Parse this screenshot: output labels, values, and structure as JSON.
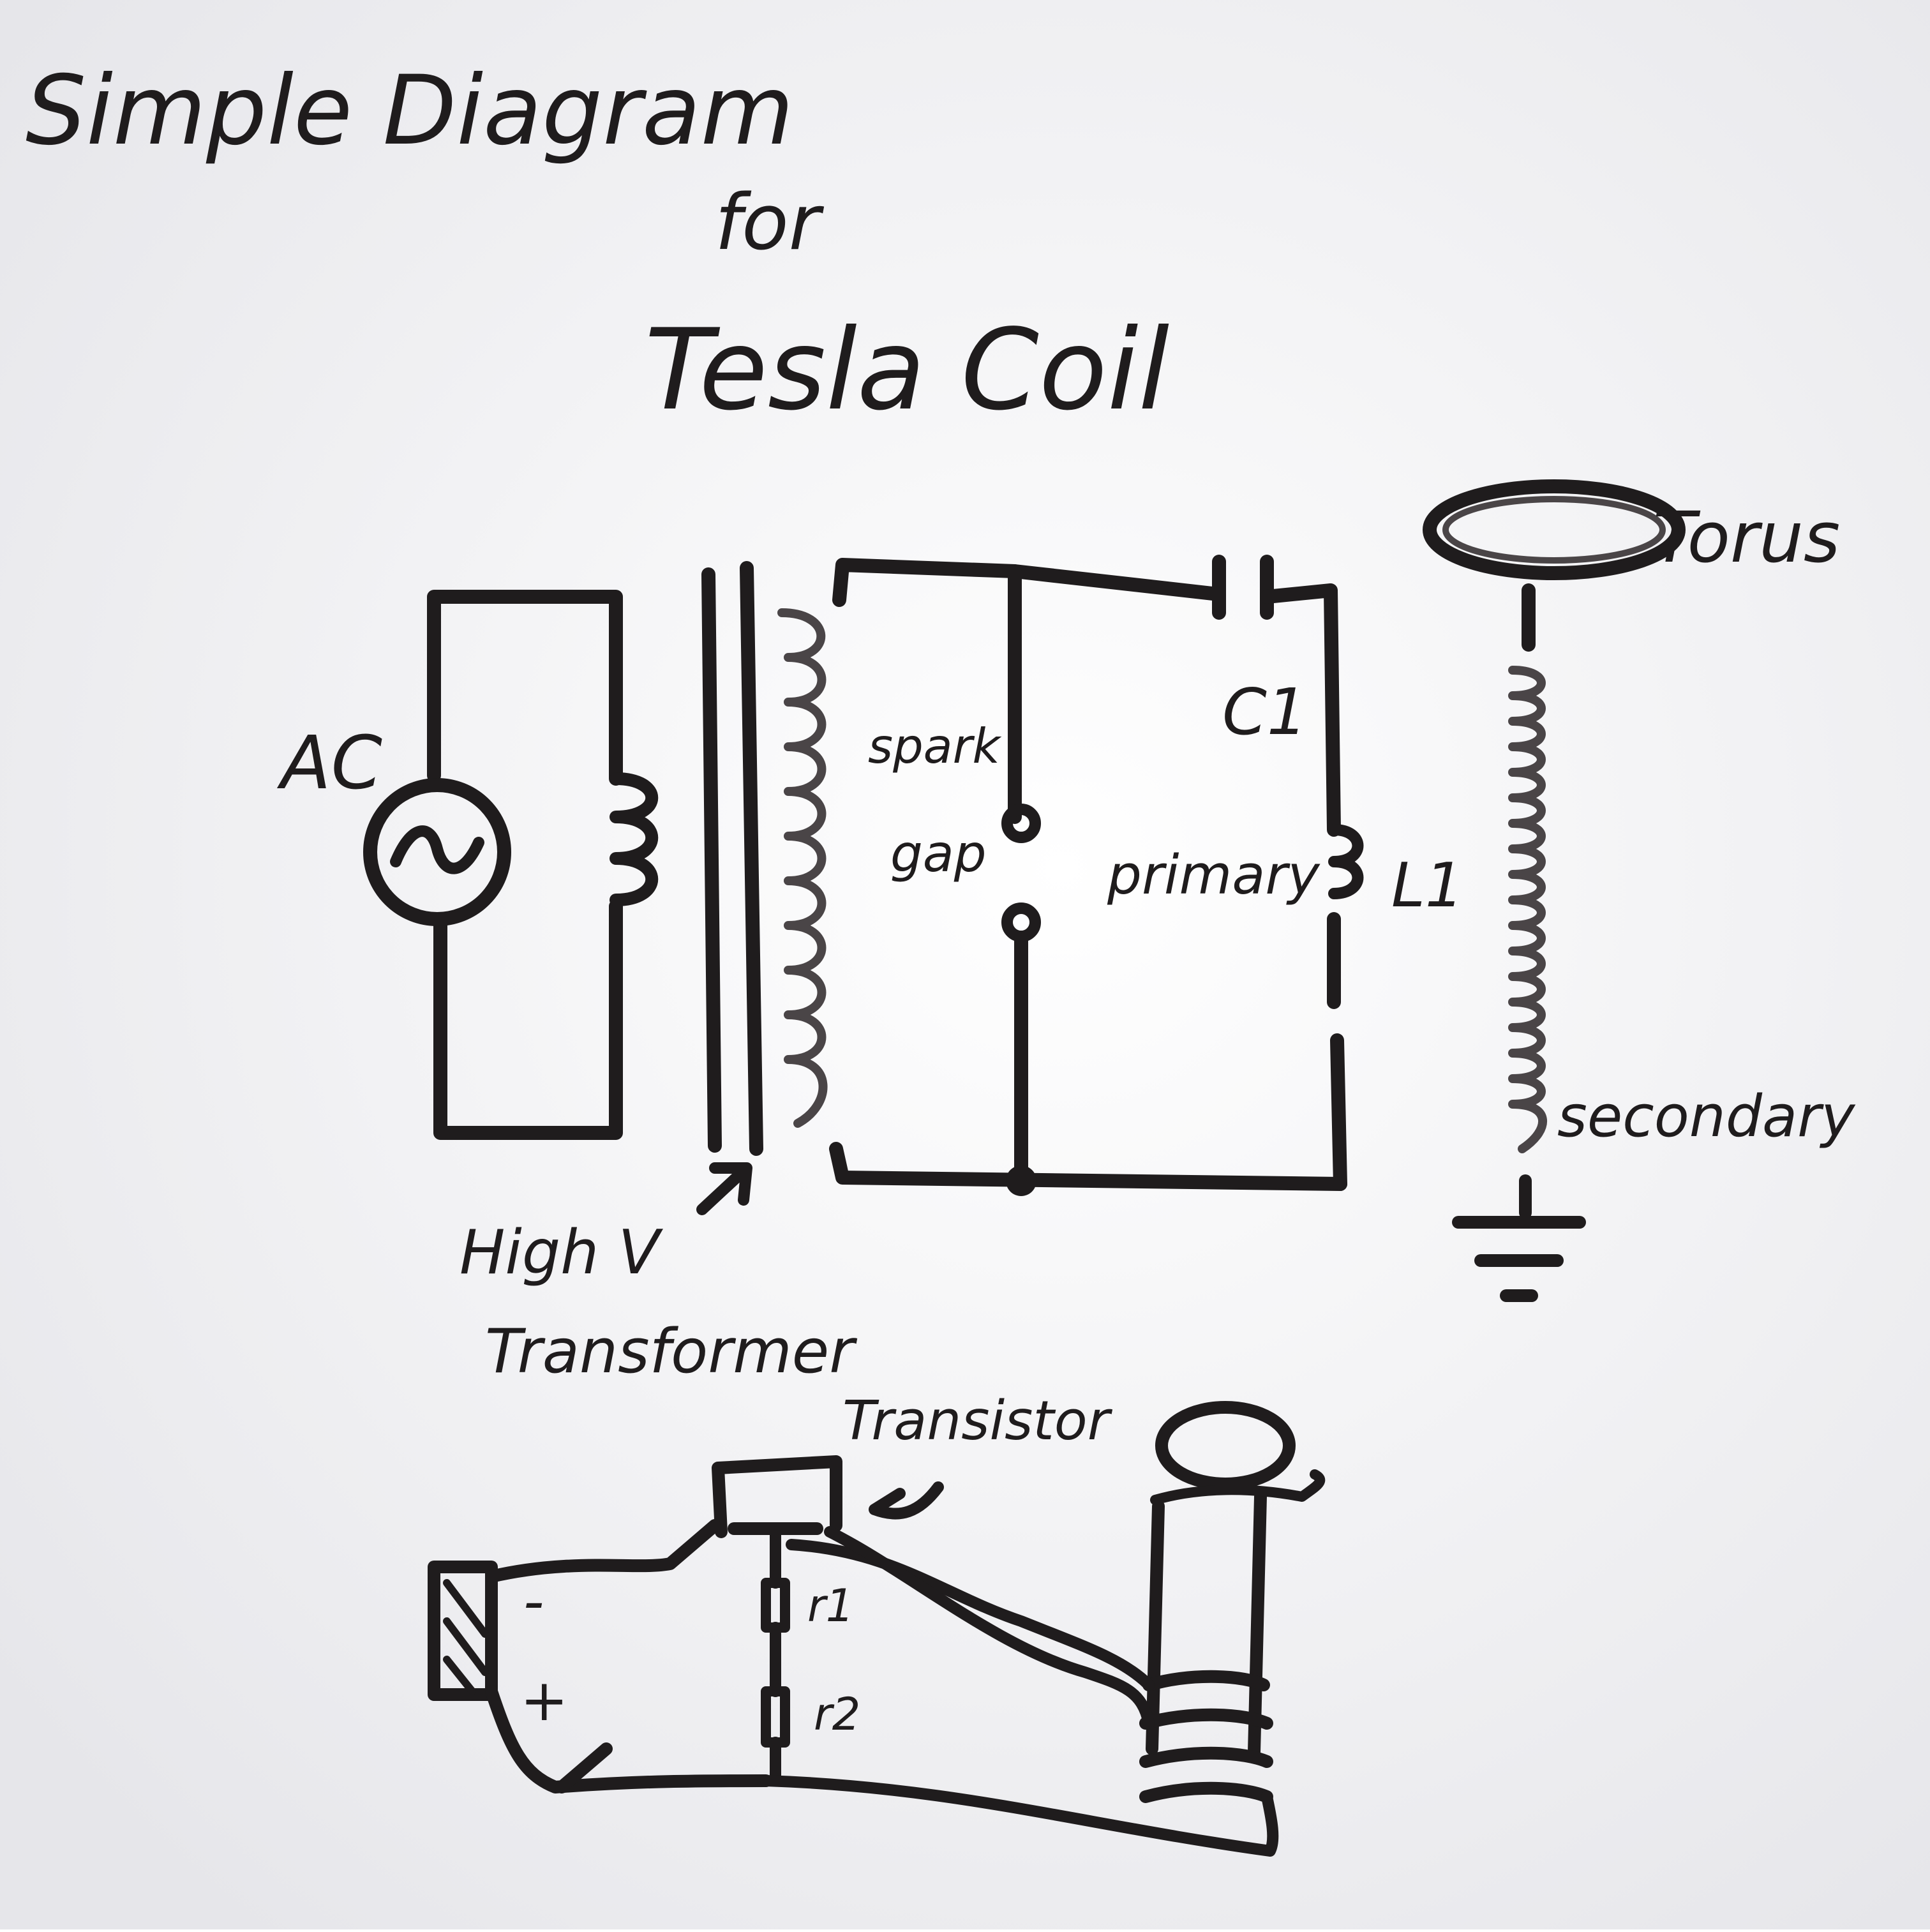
{
  "title": {
    "line1": "Simple Diagram",
    "line2": "for",
    "line3": "Tesla Coil"
  },
  "labels": {
    "ac": "AC",
    "spark": "spark",
    "gap": "gap",
    "capacitor": "C1",
    "primary": "primary",
    "inductor": "L1",
    "torus": "Torus",
    "secondary": "secondary",
    "high_v": "High V",
    "transformer": "Transformer",
    "transistor": "Transistor",
    "battery_minus": "-",
    "battery_plus": "+",
    "r1": "r1",
    "r2": "r2"
  },
  "colors": {
    "board": "#ffffff",
    "ink": "#1f1c1d",
    "shadow": "#e3e3e6"
  }
}
